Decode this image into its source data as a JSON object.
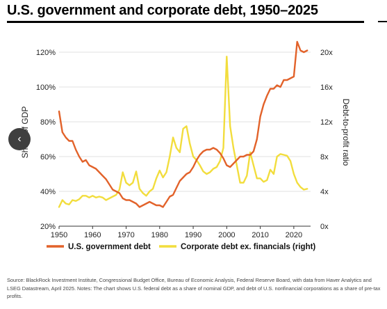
{
  "title": "U.S. government and corporate debt, 1950–2025",
  "source": "Source: BlackRock Investment Institute, Congressional Budget Office, Bureau of Economic Analysis, Federal Reserve Board, with data from Haver Analytics and LSEG Datastream, April 2025. Notes: The chart shows U.S. federal debt as a share of nominal GDP, and debt of U.S. nonfinancial corporations as a share of pre-tax profits.",
  "nav": {
    "icon": "chevron-left-icon",
    "glyph": "‹"
  },
  "chart_data": {
    "type": "line",
    "xlabel": "",
    "ylabel": "Share of GDP",
    "y2label": "Debt-to-profit ratio",
    "xlim": [
      1950,
      2025
    ],
    "ylim": [
      20,
      130
    ],
    "y2lim": [
      0,
      22
    ],
    "x_ticks": [
      "1950",
      "1960",
      "1970",
      "1980",
      "1990",
      "2000",
      "2010",
      "2020"
    ],
    "y_ticks": [
      "20%",
      "40%",
      "60%",
      "80%",
      "100%",
      "120%"
    ],
    "y2_ticks": [
      "0x",
      "4x",
      "8x",
      "12x",
      "16x",
      "20x"
    ],
    "grid": true,
    "legend_position": "bottom",
    "series": [
      {
        "name": "U.S. government debt",
        "axis": "left",
        "color": "#e2622a",
        "x": [
          1950,
          1951,
          1952,
          1953,
          1954,
          1955,
          1956,
          1957,
          1958,
          1959,
          1960,
          1961,
          1962,
          1963,
          1964,
          1965,
          1966,
          1967,
          1968,
          1969,
          1970,
          1971,
          1972,
          1973,
          1974,
          1975,
          1976,
          1977,
          1978,
          1979,
          1980,
          1981,
          1982,
          1983,
          1984,
          1985,
          1986,
          1987,
          1988,
          1989,
          1990,
          1991,
          1992,
          1993,
          1994,
          1995,
          1996,
          1997,
          1998,
          1999,
          2000,
          2001,
          2002,
          2003,
          2004,
          2005,
          2006,
          2007,
          2008,
          2009,
          2010,
          2011,
          2012,
          2013,
          2014,
          2015,
          2016,
          2017,
          2018,
          2019,
          2020,
          2021,
          2022,
          2023,
          2024
        ],
        "values": [
          86,
          74,
          71,
          69,
          69,
          64,
          60,
          57,
          58,
          55,
          54,
          53,
          51,
          49,
          47,
          44,
          41,
          40,
          39,
          36,
          35,
          35,
          34,
          33,
          31,
          32,
          33,
          34,
          33,
          32,
          32,
          31,
          34,
          37,
          38,
          42,
          46,
          48,
          50,
          51,
          54,
          58,
          61,
          63,
          64,
          64,
          65,
          64,
          62,
          59,
          55,
          54,
          56,
          58,
          60,
          60,
          61,
          61,
          63,
          70,
          83,
          90,
          95,
          99,
          99,
          101,
          100,
          104,
          104,
          105,
          106,
          126,
          121,
          120,
          121
        ]
      },
      {
        "name": "Corporate debt ex. financials (right)",
        "axis": "right",
        "color": "#f2dd3d",
        "x": [
          1950,
          1951,
          1952,
          1953,
          1954,
          1955,
          1956,
          1957,
          1958,
          1959,
          1960,
          1961,
          1962,
          1963,
          1964,
          1965,
          1966,
          1967,
          1968,
          1969,
          1970,
          1971,
          1972,
          1973,
          1974,
          1975,
          1976,
          1977,
          1978,
          1979,
          1980,
          1981,
          1982,
          1983,
          1984,
          1985,
          1986,
          1987,
          1988,
          1989,
          1990,
          1991,
          1992,
          1993,
          1994,
          1995,
          1996,
          1997,
          1998,
          1999,
          2000,
          2001,
          2002,
          2003,
          2004,
          2005,
          2006,
          2007,
          2008,
          2009,
          2010,
          2011,
          2012,
          2013,
          2014,
          2015,
          2016,
          2017,
          2018,
          2019,
          2020,
          2021,
          2022,
          2023,
          2024
        ],
        "values": [
          2.2,
          3.0,
          2.6,
          2.5,
          3.0,
          2.9,
          3.1,
          3.5,
          3.5,
          3.3,
          3.5,
          3.3,
          3.4,
          3.3,
          3.0,
          3.2,
          3.4,
          3.6,
          4.2,
          6.2,
          5.0,
          4.7,
          5.0,
          6.3,
          4.3,
          3.8,
          3.5,
          4.0,
          4.3,
          5.5,
          6.4,
          5.6,
          6.2,
          8.0,
          10.2,
          9.0,
          8.5,
          11.2,
          11.5,
          9.5,
          8.0,
          7.6,
          7.0,
          6.3,
          6.0,
          6.2,
          6.6,
          6.8,
          7.5,
          9.0,
          19.5,
          11.5,
          9.0,
          7.0,
          5.0,
          5.0,
          5.8,
          8.5,
          7.0,
          5.5,
          5.5,
          5.1,
          5.3,
          6.5,
          6.0,
          8.0,
          8.3,
          8.2,
          8.1,
          7.5,
          6.0,
          5.0,
          4.5,
          4.2,
          4.3
        ]
      }
    ]
  }
}
